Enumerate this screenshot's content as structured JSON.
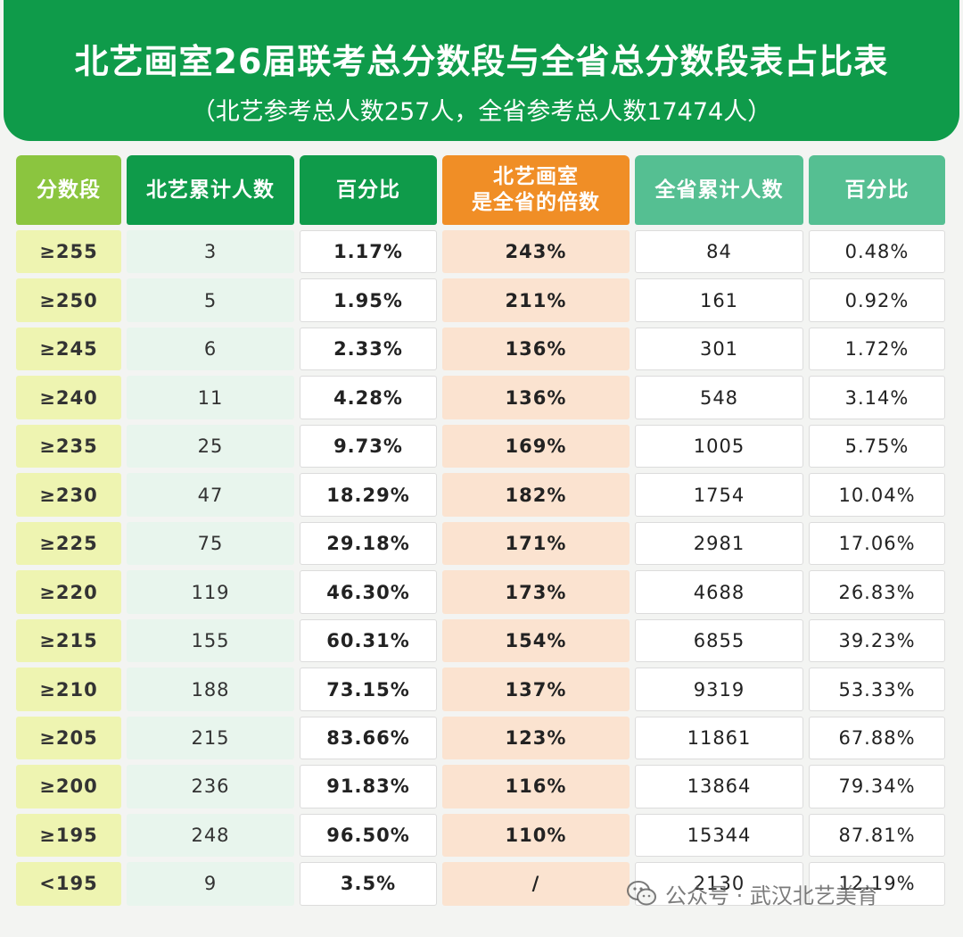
{
  "header": {
    "title": "北艺画室26届联考总分数段与全省总分数段表占比表",
    "subtitle": "（北艺参考总人数257人，全省参考总人数17474人）"
  },
  "table": {
    "headers": [
      "分数段",
      "北艺累计人数",
      "百分比",
      "北艺画室\n是全省的倍数",
      "全省累计人数",
      "百分比"
    ],
    "rows": [
      [
        "≥255",
        "3",
        "1.17%",
        "243%",
        "84",
        "0.48%"
      ],
      [
        "≥250",
        "5",
        "1.95%",
        "211%",
        "161",
        "0.92%"
      ],
      [
        "≥245",
        "6",
        "2.33%",
        "136%",
        "301",
        "1.72%"
      ],
      [
        "≥240",
        "11",
        "4.28%",
        "136%",
        "548",
        "3.14%"
      ],
      [
        "≥235",
        "25",
        "9.73%",
        "169%",
        "1005",
        "5.75%"
      ],
      [
        "≥230",
        "47",
        "18.29%",
        "182%",
        "1754",
        "10.04%"
      ],
      [
        "≥225",
        "75",
        "29.18%",
        "171%",
        "2981",
        "17.06%"
      ],
      [
        "≥220",
        "119",
        "46.30%",
        "173%",
        "4688",
        "26.83%"
      ],
      [
        "≥215",
        "155",
        "60.31%",
        "154%",
        "6855",
        "39.23%"
      ],
      [
        "≥210",
        "188",
        "73.15%",
        "137%",
        "9319",
        "53.33%"
      ],
      [
        "≥205",
        "215",
        "83.66%",
        "123%",
        "11861",
        "67.88%"
      ],
      [
        "≥200",
        "236",
        "91.83%",
        "116%",
        "13864",
        "79.34%"
      ],
      [
        "≥195",
        "248",
        "96.50%",
        "110%",
        "15344",
        "87.81%"
      ],
      [
        "<195",
        "9",
        "3.5%",
        "/",
        "2130",
        "12.19%"
      ]
    ]
  },
  "watermark": {
    "icon": "wechat-icon",
    "text": "公众号 · 武汉北艺美育"
  },
  "colors": {
    "header_green": "#0f9b4a",
    "lime": "#8bc53f",
    "orange": "#f08e26",
    "mint": "#55bf92"
  }
}
